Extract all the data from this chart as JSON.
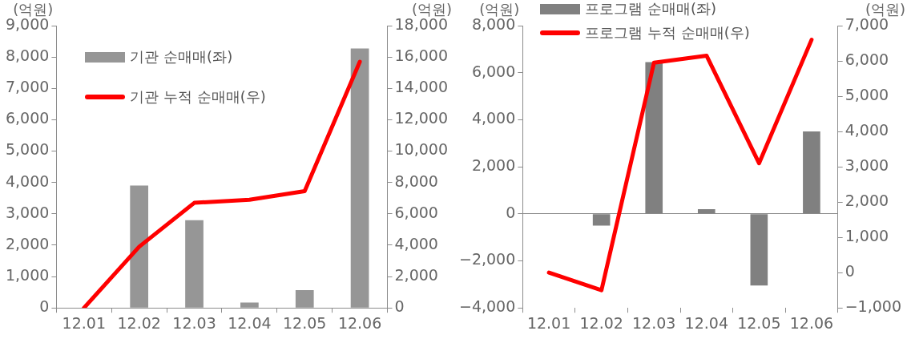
{
  "chart_data": [
    {
      "type": "bar",
      "categories": [
        "12.01",
        "12.02",
        "12.03",
        "12.04",
        "12.05",
        "12.06"
      ],
      "series": [
        {
          "name": "기관 순매매(좌)",
          "color": "#969696",
          "values": [
            null,
            3900,
            2800,
            170,
            570,
            8270
          ]
        },
        {
          "name": "기관 누적 순매매(우)",
          "type": "line",
          "axis": "y2",
          "color": "#ff0000",
          "values": [
            0,
            3900,
            6700,
            6900,
            7450,
            15700
          ]
        }
      ],
      "ylabel": "(억원)",
      "y2label": "(억원)",
      "ylim": [
        0,
        9000
      ],
      "yticks": [
        {
          "value": 0,
          "label": "0"
        },
        {
          "value": 1000,
          "label": "1,000"
        },
        {
          "value": 2000,
          "label": "2,000"
        },
        {
          "value": 3000,
          "label": "3,000"
        },
        {
          "value": 4000,
          "label": "4,000"
        },
        {
          "value": 5000,
          "label": "5,000"
        },
        {
          "value": 6000,
          "label": "6,000"
        },
        {
          "value": 7000,
          "label": "7,000"
        },
        {
          "value": 8000,
          "label": "8,000"
        },
        {
          "value": 9000,
          "label": "9,000"
        }
      ],
      "y2lim": [
        0,
        18000
      ],
      "y2ticks": [
        {
          "value": 0,
          "label": "0"
        },
        {
          "value": 2000,
          "label": "2,000"
        },
        {
          "value": 4000,
          "label": "4,000"
        },
        {
          "value": 6000,
          "label": "6,000"
        },
        {
          "value": 8000,
          "label": "8,000"
        },
        {
          "value": 10000,
          "label": "10,000"
        },
        {
          "value": 12000,
          "label": "12,000"
        },
        {
          "value": 14000,
          "label": "14,000"
        },
        {
          "value": 16000,
          "label": "16,000"
        },
        {
          "value": 18000,
          "label": "18,000"
        }
      ],
      "legend": "top left"
    },
    {
      "type": "bar",
      "categories": [
        "12.01",
        "12.02",
        "12.03",
        "12.04",
        "12.05",
        "12.06"
      ],
      "series": [
        {
          "name": "프로그램 순매매(좌)",
          "color": "#808080",
          "values": [
            null,
            -500,
            6450,
            200,
            -3050,
            3500
          ]
        },
        {
          "name": "프로그램 누적 순매매(우)",
          "type": "line",
          "axis": "y2",
          "color": "#ff0000",
          "values": [
            0,
            -500,
            5950,
            6150,
            3100,
            6600
          ]
        }
      ],
      "ylabel": "(억원)",
      "y2label": "(억원)",
      "ylim": [
        -4000,
        8000
      ],
      "yticks": [
        {
          "value": -4000,
          "label": "−4,000"
        },
        {
          "value": -2000,
          "label": "−2,000"
        },
        {
          "value": 0,
          "label": "0"
        },
        {
          "value": 2000,
          "label": "2,000"
        },
        {
          "value": 4000,
          "label": "4,000"
        },
        {
          "value": 6000,
          "label": "6,000"
        },
        {
          "value": 8000,
          "label": "8,000"
        }
      ],
      "y2lim": [
        -1000,
        7000
      ],
      "y2ticks": [
        {
          "value": -1000,
          "label": "−1,000"
        },
        {
          "value": 0,
          "label": "0"
        },
        {
          "value": 1000,
          "label": "1,000"
        },
        {
          "value": 2000,
          "label": "2,000"
        },
        {
          "value": 3000,
          "label": "3,000"
        },
        {
          "value": 4000,
          "label": "4,000"
        },
        {
          "value": 5000,
          "label": "5,000"
        },
        {
          "value": 6000,
          "label": "6,000"
        },
        {
          "value": 7000,
          "label": "7,000"
        }
      ],
      "legend": "top"
    }
  ]
}
